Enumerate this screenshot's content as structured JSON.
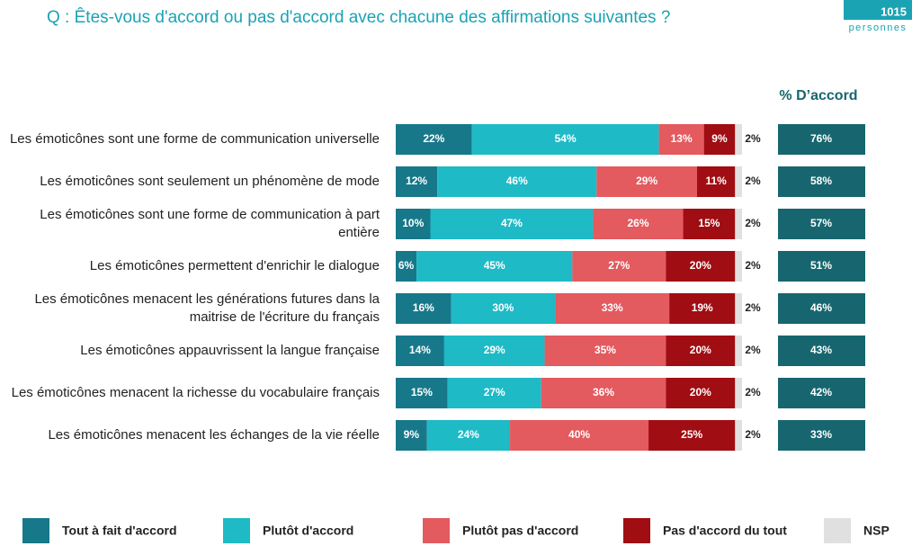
{
  "chart_data": {
    "type": "bar",
    "orientation": "horizontal",
    "stacked": true,
    "title": "Q :  Êtes-vous d'accord ou pas d'accord avec chacune des affirmations suivantes ?",
    "sample_size": "1015",
    "sample_label": "personnes",
    "xlim": [
      0,
      100
    ],
    "categories": [
      "Les émoticônes sont une forme de communication universelle",
      "Les émoticônes sont seulement un phénomène de mode",
      "Les émoticônes sont une forme de communication à part entière",
      "Les émoticônes permettent d'enrichir le dialogue",
      "Les émoticônes menacent les générations futures dans la maitrise de l'écriture du français",
      "Les émoticônes appauvrissent la langue française",
      "Les émoticônes menacent la richesse du vocabulaire français",
      "Les émoticônes menacent les échanges de la vie réelle"
    ],
    "series": [
      {
        "name": "Tout à fait d'accord",
        "color": "#17788a",
        "values": [
          22,
          12,
          10,
          6,
          16,
          14,
          15,
          9
        ],
        "value_labels": [
          "22%",
          "12%",
          "10%",
          "6%",
          "16%",
          "14%",
          "15%",
          "9%"
        ]
      },
      {
        "name": "Plutôt d'accord",
        "color": "#1ebac6",
        "values": [
          54,
          46,
          47,
          45,
          30,
          29,
          27,
          24
        ],
        "value_labels": [
          "54%",
          "46%",
          "47%",
          "45%",
          "30%",
          "29%",
          "27%",
          "24%"
        ]
      },
      {
        "name": "Plutôt pas d'accord",
        "color": "#e35a5f",
        "values": [
          13,
          29,
          26,
          27,
          33,
          35,
          36,
          40
        ],
        "value_labels": [
          "13%",
          "29%",
          "26%",
          "27%",
          "33%",
          "35%",
          "36%",
          "40%"
        ]
      },
      {
        "name": "Pas d'accord du tout",
        "color": "#a00d12",
        "values": [
          9,
          11,
          15,
          20,
          19,
          20,
          20,
          25
        ],
        "value_labels": [
          "9%",
          "11%",
          "15%",
          "20%",
          "19%",
          "20%",
          "20%",
          "25%"
        ]
      },
      {
        "name": "NSP",
        "color": "#e0e0e0",
        "values": [
          2,
          2,
          2,
          2,
          2,
          2,
          2,
          2
        ],
        "value_labels": [
          "2%",
          "2%",
          "2%",
          "2%",
          "2%",
          "2%",
          "2%",
          "2%"
        ]
      }
    ],
    "agree": {
      "header": "% D’accord",
      "color": "#17666f",
      "values": [
        76,
        58,
        57,
        51,
        46,
        43,
        42,
        33
      ],
      "value_labels": [
        "76%",
        "58%",
        "57%",
        "51%",
        "46%",
        "43%",
        "42%",
        "33%"
      ]
    }
  }
}
